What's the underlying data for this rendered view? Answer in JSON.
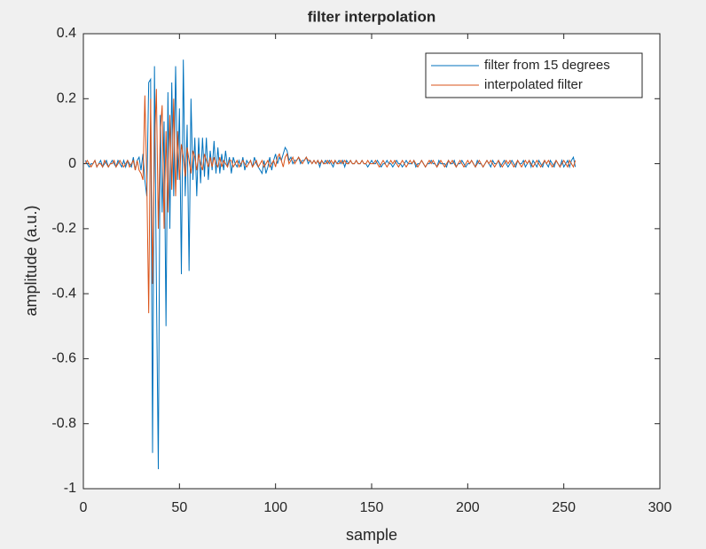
{
  "chart_data": {
    "type": "line",
    "title": "filter interpolation",
    "x_label": "sample",
    "y_label": "amplitude (a.u.)",
    "x": [
      1,
      2,
      3,
      4,
      5,
      6,
      7,
      8,
      9,
      10,
      11,
      12,
      13,
      14,
      15,
      16,
      17,
      18,
      19,
      20,
      21,
      22,
      23,
      24,
      25,
      26,
      27,
      28,
      29,
      30,
      31,
      32,
      33,
      34,
      35,
      36,
      37,
      38,
      39,
      40,
      41,
      42,
      43,
      44,
      45,
      46,
      47,
      48,
      49,
      50,
      51,
      52,
      53,
      54,
      55,
      56,
      57,
      58,
      59,
      60,
      61,
      62,
      63,
      64,
      65,
      66,
      67,
      68,
      69,
      70,
      71,
      72,
      73,
      74,
      75,
      76,
      77,
      78,
      79,
      80,
      81,
      82,
      83,
      84,
      85,
      86,
      87,
      88,
      89,
      90,
      91,
      92,
      93,
      94,
      95,
      96,
      97,
      98,
      99,
      100,
      101,
      102,
      103,
      104,
      105,
      106,
      107,
      108,
      109,
      110,
      111,
      112,
      113,
      114,
      115,
      116,
      117,
      118,
      119,
      120,
      121,
      122,
      123,
      124,
      125,
      126,
      127,
      128,
      129,
      130,
      131,
      132,
      133,
      134,
      135,
      136,
      137,
      138,
      139,
      140,
      141,
      142,
      143,
      144,
      145,
      146,
      147,
      148,
      149,
      150,
      151,
      152,
      153,
      154,
      155,
      156,
      157,
      158,
      159,
      160,
      161,
      162,
      163,
      164,
      165,
      166,
      167,
      168,
      169,
      170,
      171,
      172,
      173,
      174,
      175,
      176,
      177,
      178,
      179,
      180,
      181,
      182,
      183,
      184,
      185,
      186,
      187,
      188,
      189,
      190,
      191,
      192,
      193,
      194,
      195,
      196,
      197,
      198,
      199,
      200,
      201,
      202,
      203,
      204,
      205,
      206,
      207,
      208,
      209,
      210,
      211,
      212,
      213,
      214,
      215,
      216,
      217,
      218,
      219,
      220,
      221,
      222,
      223,
      224,
      225,
      226,
      227,
      228,
      229,
      230,
      231,
      232,
      233,
      234,
      235,
      236,
      237,
      238,
      239,
      240,
      241,
      242,
      243,
      244,
      245,
      246,
      247,
      248,
      249,
      250,
      251,
      252,
      253,
      254,
      255,
      256
    ],
    "series": [
      {
        "name": "filter from 15 degrees",
        "color": "#0072bd",
        "values": [
          0.01,
          0,
          -0.01,
          0,
          0,
          0.01,
          -0.01,
          0,
          0.01,
          -0.01,
          0,
          0.01,
          -0.01,
          0,
          0.01,
          0,
          -0.01,
          0.01,
          0,
          -0.01,
          0.01,
          -0.01,
          0.01,
          0,
          -0.01,
          0.02,
          -0.02,
          0.01,
          0.02,
          -0.02,
          0.03,
          -0.05,
          -0.1,
          0.25,
          0.26,
          -0.89,
          0.3,
          -0.37,
          -0.94,
          0.15,
          -0.15,
          0.13,
          -0.5,
          0.22,
          -0.2,
          0.25,
          -0.1,
          0.3,
          -0.05,
          0.17,
          -0.34,
          0.32,
          -0.1,
          0.12,
          -0.33,
          0.2,
          -0.05,
          0.08,
          -0.1,
          0.08,
          -0.06,
          0.08,
          -0.04,
          0.08,
          -0.05,
          0.04,
          -0.02,
          0.07,
          -0.03,
          0.05,
          -0.03,
          0.03,
          -0.02,
          0.04,
          -0.01,
          0.02,
          -0.03,
          0.02,
          0,
          -0.01,
          0.01,
          -0.01,
          0.02,
          -0.02,
          0.01,
          0,
          0.01,
          -0.01,
          0.02,
          0,
          -0.01,
          -0.02,
          -0.03,
          0.01,
          -0.03,
          -0.01,
          0.02,
          -0.02,
          0.01,
          0.03,
          0,
          0.02,
          0.01,
          0.03,
          0.05,
          0.04,
          0.01,
          0.02,
          0,
          0.01,
          0.01,
          0.02,
          0,
          0.01,
          0.01,
          0.02,
          0,
          0.01,
          0,
          0.01,
          0,
          0.01,
          -0.01,
          0.01,
          0,
          0.01,
          0,
          0.01,
          0,
          -0.01,
          0.01,
          0,
          0.01,
          0,
          0.01,
          -0.01,
          0.01,
          0,
          0.01,
          0,
          0,
          0.01,
          0,
          0,
          0.01,
          0,
          0,
          -0.01,
          0,
          0.01,
          0,
          0,
          0.01,
          0,
          -0.01,
          0,
          0,
          0.01,
          0,
          0,
          -0.01,
          0,
          0.01,
          0,
          0,
          -0.01,
          0,
          0.01,
          0,
          0,
          0,
          0.01,
          -0.01,
          0,
          0,
          0.01,
          0,
          -0.01,
          0,
          0,
          0.01,
          0,
          0,
          -0.01,
          0.01,
          0,
          0,
          0,
          -0.01,
          0.01,
          0,
          0,
          0.01,
          -0.01,
          0,
          0,
          0.01,
          0,
          -0.01,
          0,
          0,
          0.01,
          0,
          -0.01,
          0.01,
          0,
          0,
          -0.01,
          0,
          0.01,
          0,
          -0.01,
          0.01,
          0,
          0,
          0.01,
          -0.01,
          0,
          0.01,
          0,
          -0.01,
          0,
          0.01,
          0,
          -0.01,
          0.01,
          0,
          0,
          0.01,
          -0.01,
          0,
          0.01,
          -0.01,
          0.01,
          0,
          -0.01,
          0.01,
          0,
          -0.01,
          0.01,
          0,
          -0.01,
          0.01,
          0,
          -0.01,
          0.01,
          0,
          -0.01,
          0.01,
          -0.01,
          0,
          0.01,
          -0.01,
          0.01,
          0.02,
          -0.01
        ]
      },
      {
        "name": "interpolated filter",
        "color": "#d95319",
        "values": [
          0,
          0.01,
          0,
          -0.01,
          0,
          0.01,
          -0.01,
          0,
          0,
          -0.01,
          0.01,
          0,
          -0.01,
          0,
          0,
          0.01,
          -0.01,
          0,
          0.01,
          0,
          -0.01,
          0,
          0.01,
          -0.01,
          0,
          0.01,
          -0.02,
          0.01,
          -0.02,
          -0.03,
          -0.05,
          0.21,
          -0.05,
          -0.46,
          0.2,
          -0.37,
          0.05,
          0.23,
          -0.2,
          0.1,
          0.18,
          -0.2,
          0.1,
          -0.15,
          0.15,
          -0.08,
          0.2,
          -0.1,
          0.1,
          -0.05,
          0.06,
          0.02,
          -0.04,
          0.05,
          0.01,
          -0.03,
          0.04,
          0.02,
          -0.02,
          0.03,
          0,
          -0.02,
          0.03,
          0.01,
          -0.01,
          0.02,
          -0.01,
          0.02,
          0,
          -0.01,
          0.02,
          -0.01,
          0.01,
          0,
          -0.01,
          0.01,
          0.01,
          -0.01,
          0,
          0.01,
          -0.01,
          0,
          0.01,
          0,
          -0.01,
          0,
          0.01,
          -0.01,
          0,
          0.01,
          -0.01,
          0,
          0.01,
          -0.01,
          0,
          0.01,
          -0.01,
          0,
          0.01,
          -0.01,
          0.02,
          0.03,
          0.01,
          -0.01,
          0.02,
          0.03,
          0,
          0.01,
          0.02,
          0,
          0.01,
          0.02,
          0.01,
          0,
          0.01,
          0.02,
          0.01,
          0.01,
          0,
          0.01,
          0,
          0.01,
          0,
          0.01,
          0,
          0,
          0.01,
          0,
          0.01,
          0,
          0.01,
          0,
          0,
          0.01,
          0,
          0.01,
          0,
          0,
          0.01,
          0,
          0,
          0.01,
          0,
          0,
          0.01,
          0,
          0,
          0.01,
          0,
          0,
          0,
          0.01,
          0,
          -0.01,
          0,
          0.01,
          0,
          -0.01,
          0,
          0.01,
          0,
          0.01,
          0,
          -0.01,
          0,
          0.01,
          0,
          -0.01,
          0,
          0.01,
          0,
          0.01,
          0,
          -0.01,
          0,
          0.01,
          0,
          -0.01,
          0,
          0.01,
          0,
          0.01,
          0,
          -0.01,
          0,
          0.01,
          0,
          -0.01,
          0,
          0.01,
          0,
          0.01,
          0,
          -0.01,
          0,
          0.01,
          0,
          -0.01,
          0,
          0.01,
          0,
          0.01,
          0,
          -0.01,
          0,
          0.01,
          0,
          -0.01,
          0,
          0.01,
          0,
          0.01,
          0,
          -0.01,
          0,
          0.01,
          0,
          -0.01,
          0,
          0.01,
          0,
          0.01,
          0,
          -0.01,
          0,
          0.01,
          0,
          -0.01,
          0,
          0.01,
          0,
          0.01,
          0,
          -0.01,
          0,
          0.01,
          0,
          -0.01,
          0,
          0.01,
          0,
          0.01,
          0,
          -0.01,
          0,
          0.01,
          0,
          -0.01,
          0,
          0.01,
          0,
          -0.01,
          0.01,
          0,
          -0.01,
          0.01
        ]
      }
    ],
    "xlim": [
      0,
      300
    ],
    "xticks": [
      0,
      50,
      100,
      150,
      200,
      250,
      300
    ],
    "ylim": [
      -1,
      0.4
    ],
    "yticks": [
      -1,
      -0.8,
      -0.6,
      -0.4,
      -0.2,
      0,
      0.2,
      0.4
    ],
    "legend": "northeast",
    "grid": false
  }
}
